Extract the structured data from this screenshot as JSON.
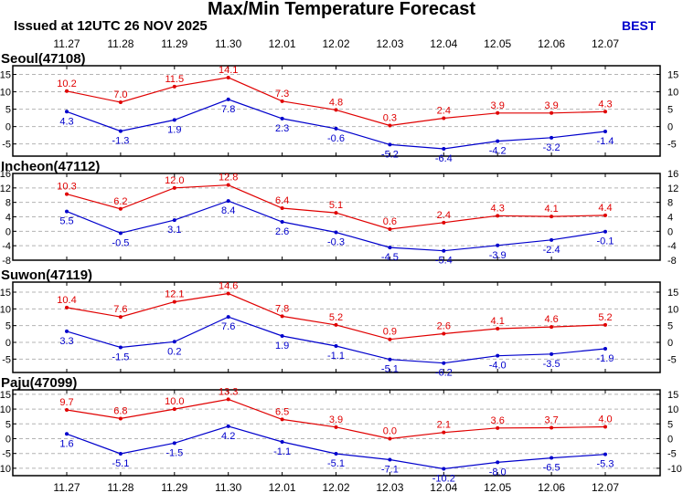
{
  "header": {
    "title": "Max/Min Temperature Forecast",
    "issued": "Issued at 12UTC 26 NOV 2025",
    "badge": "BEST"
  },
  "colors": {
    "max_series": "#e00000",
    "min_series": "#0000cc",
    "grid": "#b4b4b4",
    "frame": "#000000"
  },
  "chart_data": {
    "type": "line",
    "categories": [
      "11.27",
      "11.28",
      "11.29",
      "11.30",
      "12.01",
      "12.02",
      "12.03",
      "12.04",
      "12.05",
      "12.06",
      "12.07"
    ],
    "grid": true,
    "panels": [
      {
        "station": "Seoul(47108)",
        "ylim": [
          -8.5,
          17.5
        ],
        "yticks": [
          15,
          10,
          5,
          0,
          -5
        ],
        "series": [
          {
            "role": "max",
            "values": [
              10.2,
              7.0,
              11.5,
              14.1,
              7.3,
              4.8,
              0.3,
              2.4,
              3.9,
              3.9,
              4.3
            ]
          },
          {
            "role": "min",
            "values": [
              4.3,
              -1.3,
              1.9,
              7.8,
              2.3,
              -0.6,
              -5.2,
              -6.4,
              -4.2,
              -3.2,
              -1.4
            ]
          }
        ]
      },
      {
        "station": "Incheon(47112)",
        "ylim": [
          -8,
          16
        ],
        "yticks": [
          16,
          12,
          8,
          4,
          0,
          -4,
          -8
        ],
        "series": [
          {
            "role": "max",
            "values": [
              10.3,
              6.2,
              12.0,
              12.8,
              6.4,
              5.1,
              0.6,
              2.4,
              4.3,
              4.1,
              4.4
            ]
          },
          {
            "role": "min",
            "values": [
              5.5,
              -0.5,
              3.1,
              8.4,
              2.6,
              -0.3,
              -4.5,
              -5.4,
              -3.9,
              -2.4,
              -0.1
            ]
          }
        ]
      },
      {
        "station": "Suwon(47119)",
        "ylim": [
          -9,
          18
        ],
        "yticks": [
          15,
          10,
          5,
          0,
          -5
        ],
        "series": [
          {
            "role": "max",
            "values": [
              10.4,
              7.6,
              12.1,
              14.6,
              7.8,
              5.2,
              0.9,
              2.6,
              4.1,
              4.6,
              5.2
            ]
          },
          {
            "role": "min",
            "values": [
              3.3,
              -1.5,
              0.2,
              7.6,
              1.9,
              -1.1,
              -5.1,
              -6.2,
              -4.0,
              -3.5,
              -1.9
            ]
          }
        ]
      },
      {
        "station": "Paju(47099)",
        "ylim": [
          -12.5,
          16.5
        ],
        "yticks": [
          15,
          10,
          5,
          0,
          -5,
          -10
        ],
        "series": [
          {
            "role": "max",
            "values": [
              9.7,
              6.8,
              10.0,
              13.3,
              6.5,
              3.9,
              0.0,
              2.1,
              3.6,
              3.7,
              4.0
            ]
          },
          {
            "role": "min",
            "values": [
              1.6,
              -5.1,
              -1.5,
              4.2,
              -1.1,
              -5.1,
              -7.1,
              -10.2,
              -8.0,
              -6.5,
              -5.3
            ]
          }
        ]
      }
    ]
  }
}
